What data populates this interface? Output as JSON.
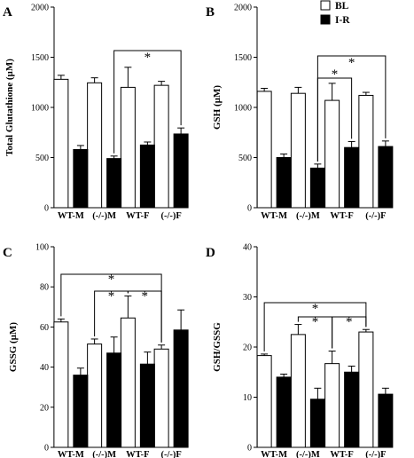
{
  "legend": [
    {
      "label": "BL",
      "color": "#ffffff"
    },
    {
      "label": "I-R",
      "color": "#000000"
    }
  ],
  "chart_data": [
    {
      "panel": "A",
      "type": "bar",
      "categories": [
        "WT-M",
        "(-/-)M",
        "WT-F",
        "(-/-)F"
      ],
      "ylabel": "Total Glutathione (µM)",
      "ylim": [
        0,
        2000
      ],
      "yticks": [
        0,
        500,
        1000,
        1500,
        2000
      ],
      "series": [
        {
          "name": "BL",
          "values": [
            1280,
            1245,
            1200,
            1220
          ],
          "errors": [
            40,
            50,
            200,
            40
          ]
        },
        {
          "name": "I-R",
          "values": [
            580,
            490,
            625,
            735
          ],
          "errors": [
            40,
            25,
            30,
            60
          ]
        }
      ],
      "significance": [
        {
          "from": [
            1,
            "I-R"
          ],
          "to": [
            3,
            "I-R"
          ],
          "label": "*"
        }
      ]
    },
    {
      "panel": "B",
      "type": "bar",
      "categories": [
        "WT-M",
        "(-/-)M",
        "WT-F",
        "(-/-)F"
      ],
      "ylabel": "GSH (µM)",
      "ylim": [
        0,
        2000
      ],
      "yticks": [
        0,
        500,
        1000,
        1500,
        2000
      ],
      "series": [
        {
          "name": "BL",
          "values": [
            1160,
            1140,
            1070,
            1120
          ],
          "errors": [
            30,
            60,
            170,
            30
          ]
        },
        {
          "name": "I-R",
          "values": [
            500,
            395,
            600,
            610
          ],
          "errors": [
            35,
            40,
            60,
            55
          ]
        }
      ],
      "significance": [
        {
          "from": [
            1,
            "I-R"
          ],
          "to": [
            3,
            "I-R"
          ],
          "label": "*"
        },
        {
          "from": [
            1,
            "I-R"
          ],
          "to": [
            2,
            "I-R"
          ],
          "label": "*"
        }
      ]
    },
    {
      "panel": "C",
      "type": "bar",
      "categories": [
        "WT-M",
        "(-/-)M",
        "WT-F",
        "(-/-)F"
      ],
      "ylabel": "GSSG (µM)",
      "ylim": [
        0,
        100
      ],
      "yticks": [
        0,
        20,
        40,
        60,
        80,
        100
      ],
      "series": [
        {
          "name": "BL",
          "values": [
            62.5,
            51.5,
            64.5,
            49
          ],
          "errors": [
            1.5,
            2.5,
            11,
            2
          ]
        },
        {
          "name": "I-R",
          "values": [
            36,
            47,
            41.5,
            58.5
          ],
          "errors": [
            3.5,
            8,
            6,
            10
          ]
        }
      ],
      "significance": [
        {
          "from": [
            0,
            "BL"
          ],
          "to": [
            3,
            "BL"
          ],
          "label": "*"
        },
        {
          "from": [
            1,
            "BL"
          ],
          "to": [
            2,
            "BL"
          ],
          "label": "*"
        },
        {
          "from": [
            2,
            "BL"
          ],
          "to": [
            3,
            "BL"
          ],
          "label": "*"
        }
      ]
    },
    {
      "panel": "D",
      "type": "bar",
      "categories": [
        "WT-M",
        "(-/-)M",
        "WT-F",
        "(-/-)F"
      ],
      "ylabel": "GSH/GSSG",
      "ylim": [
        0,
        40
      ],
      "yticks": [
        0,
        10,
        20,
        30,
        40
      ],
      "series": [
        {
          "name": "BL",
          "values": [
            18.3,
            22.5,
            16.7,
            23
          ],
          "errors": [
            0.3,
            2,
            2.5,
            0.5
          ]
        },
        {
          "name": "I-R",
          "values": [
            14,
            9.6,
            15,
            10.6
          ],
          "errors": [
            0.6,
            2.2,
            1.2,
            1.2
          ]
        }
      ],
      "significance": [
        {
          "from": [
            0,
            "BL"
          ],
          "to": [
            3,
            "BL"
          ],
          "label": "*"
        },
        {
          "from": [
            1,
            "BL"
          ],
          "to": [
            2,
            "BL"
          ],
          "label": "*"
        },
        {
          "from": [
            2,
            "BL"
          ],
          "to": [
            3,
            "BL"
          ],
          "label": "*"
        }
      ]
    }
  ]
}
